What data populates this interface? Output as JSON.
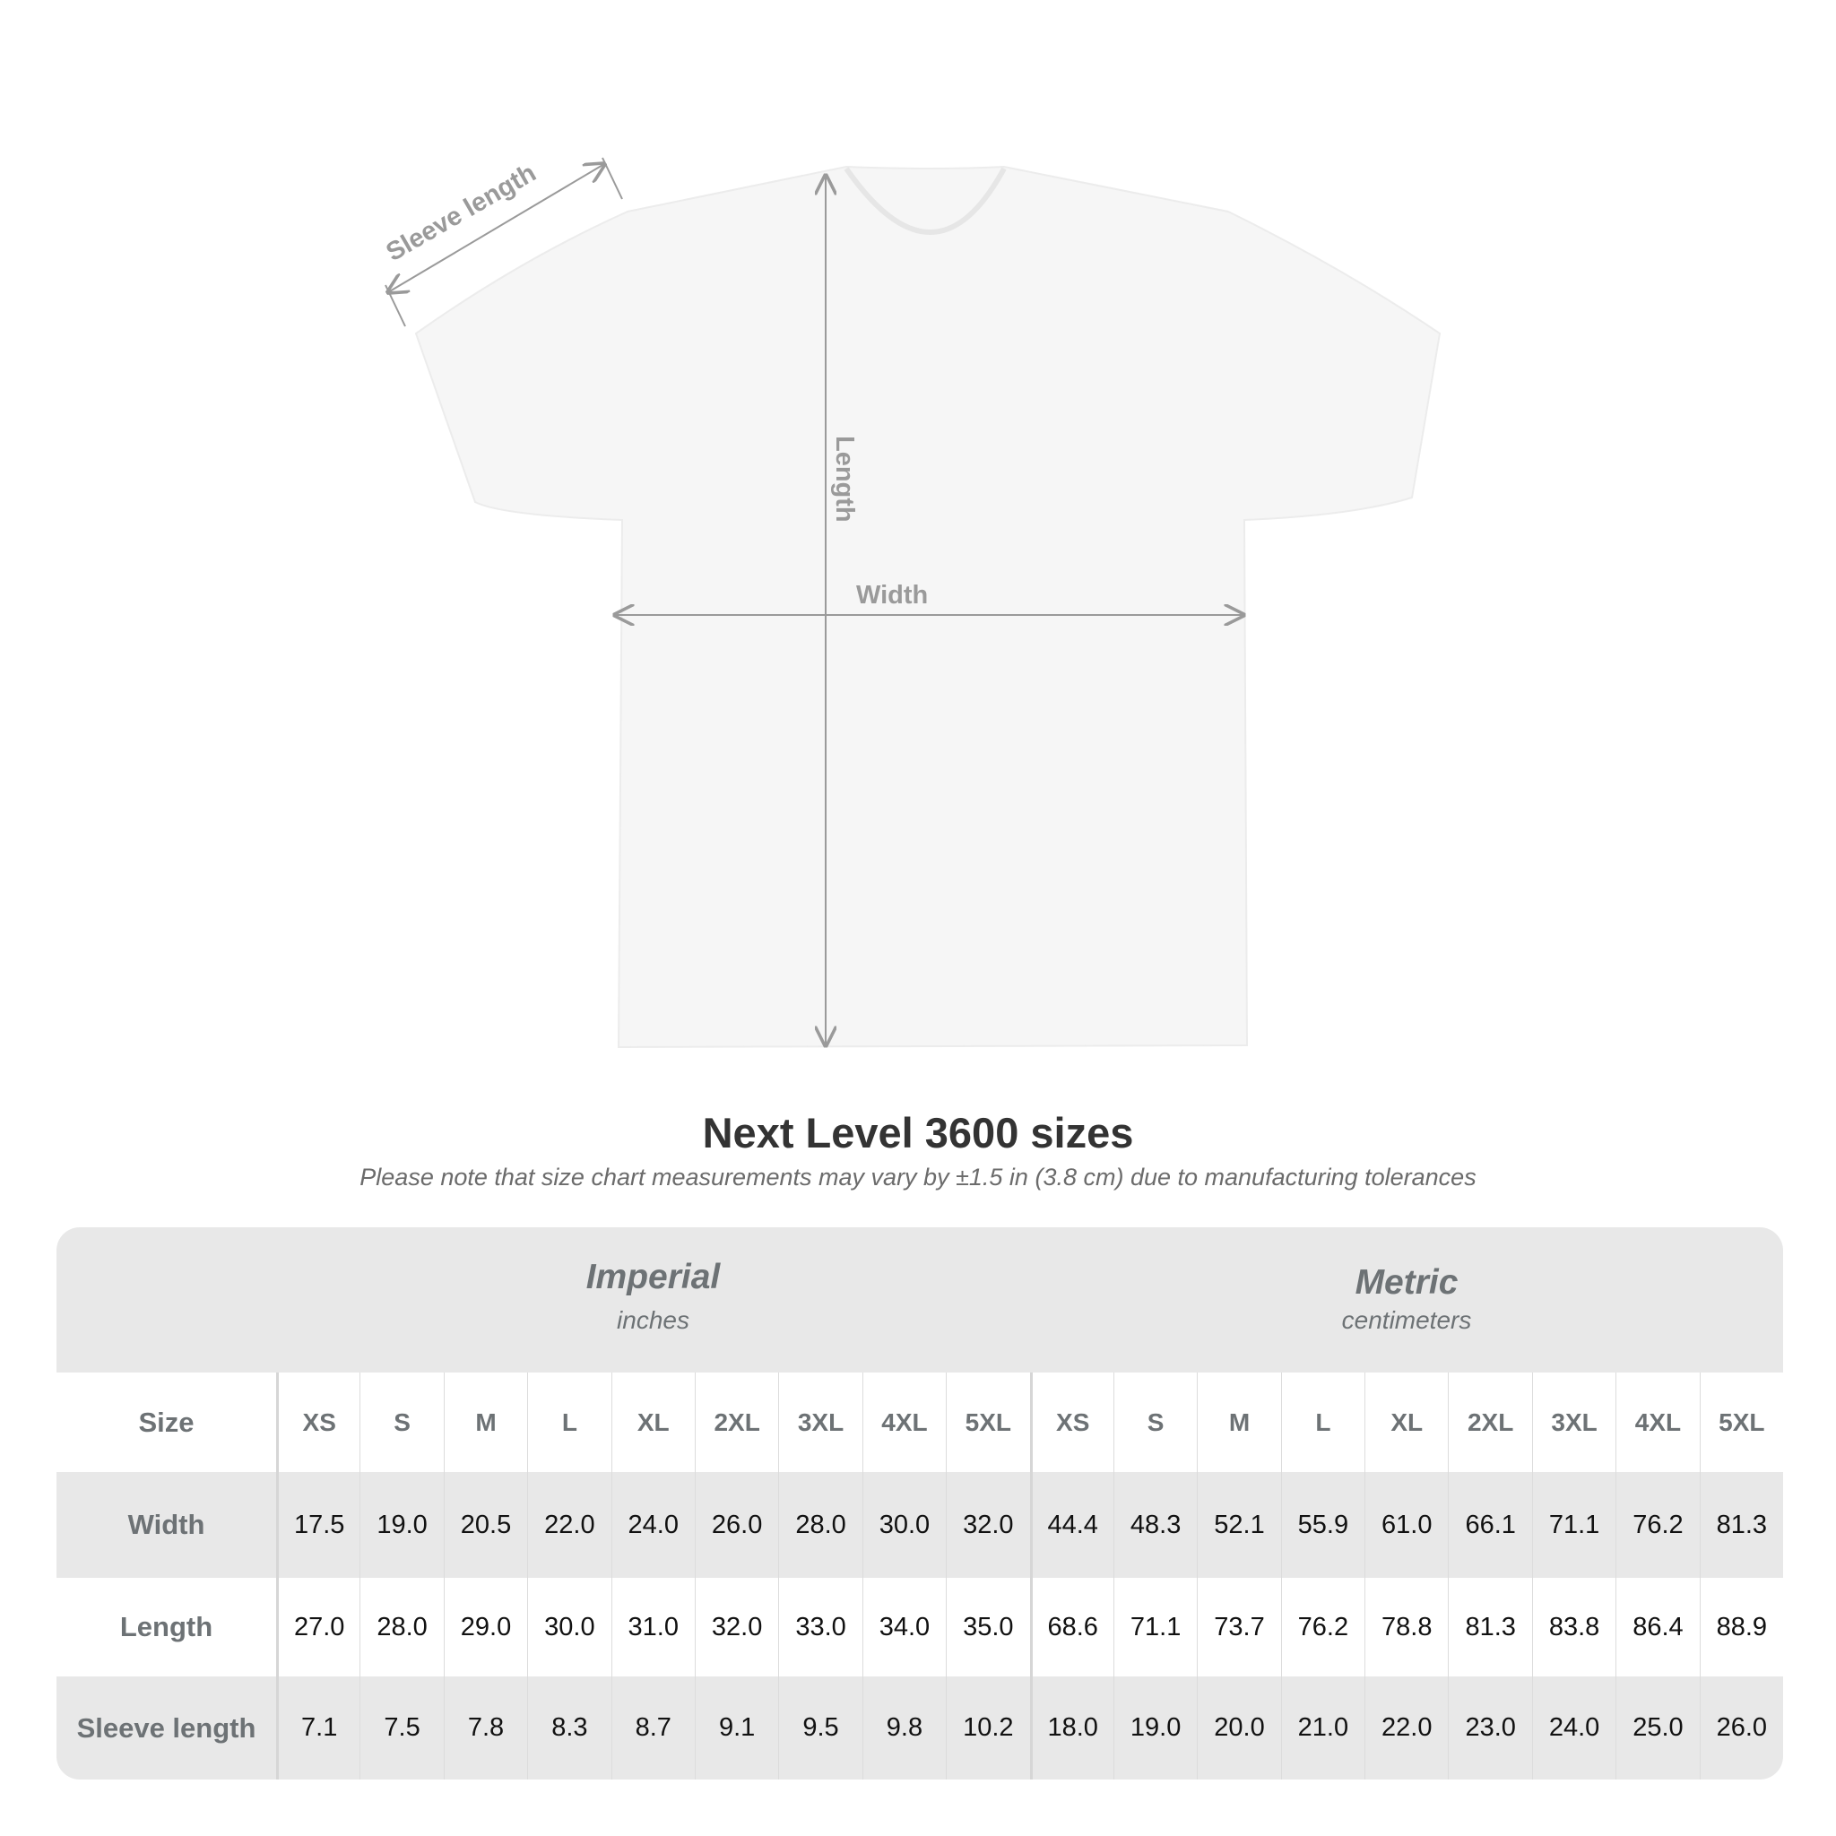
{
  "diagram": {
    "labels": {
      "sleeve": "Sleeve length",
      "length": "Length",
      "width": "Width"
    },
    "colors": {
      "shirt": "#f7f7f7",
      "arrow": "#9a9a9a"
    }
  },
  "title": "Next Level 3600 sizes",
  "subtitle": "Please note that size chart measurements may vary by ±1.5 in (3.8 cm) due to manufacturing tolerances",
  "table": {
    "imperial": {
      "title": "Imperial",
      "unit": "inches"
    },
    "metric": {
      "title": "Metric",
      "unit": "centimeters"
    },
    "size_label": "Size",
    "sizes": [
      "XS",
      "S",
      "M",
      "L",
      "XL",
      "2XL",
      "3XL",
      "4XL",
      "5XL"
    ],
    "rows": [
      {
        "label": "Width",
        "imperial": [
          "17.5",
          "19.0",
          "20.5",
          "22.0",
          "24.0",
          "26.0",
          "28.0",
          "30.0",
          "32.0"
        ],
        "metric": [
          "44.4",
          "48.3",
          "52.1",
          "55.9",
          "61.0",
          "66.1",
          "71.1",
          "76.2",
          "81.3"
        ]
      },
      {
        "label": "Length",
        "imperial": [
          "27.0",
          "28.0",
          "29.0",
          "30.0",
          "31.0",
          "32.0",
          "33.0",
          "34.0",
          "35.0"
        ],
        "metric": [
          "68.6",
          "71.1",
          "73.7",
          "76.2",
          "78.8",
          "81.3",
          "83.8",
          "86.4",
          "88.9"
        ]
      },
      {
        "label": "Sleeve length",
        "imperial": [
          "7.1",
          "7.5",
          "7.8",
          "8.3",
          "8.7",
          "9.1",
          "9.5",
          "9.8",
          "10.2"
        ],
        "metric": [
          "18.0",
          "19.0",
          "20.0",
          "21.0",
          "22.0",
          "23.0",
          "24.0",
          "25.0",
          "26.0"
        ]
      }
    ]
  }
}
